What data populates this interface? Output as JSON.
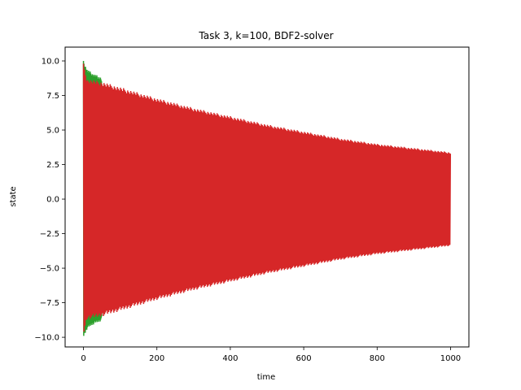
{
  "chart_data": {
    "type": "line",
    "title": "Task 3, k=100, BDF2-solver",
    "xlabel": "time",
    "ylabel": "state",
    "xlim": [
      -50,
      1050
    ],
    "ylim": [
      -10.7,
      11.0
    ],
    "xticks": [
      0,
      200,
      400,
      600,
      800,
      1000
    ],
    "xtick_labels": [
      "0",
      "200",
      "400",
      "600",
      "800",
      "1000"
    ],
    "yticks": [
      -10.0,
      -7.5,
      -5.0,
      -2.5,
      0.0,
      2.5,
      5.0,
      7.5,
      10.0
    ],
    "ytick_labels": [
      "−10.0",
      "−7.5",
      "−5.0",
      "−2.5",
      "0.0",
      "2.5",
      "5.0",
      "7.5",
      "10.0"
    ],
    "grid": false,
    "legend": "none",
    "series": [
      {
        "color": "#2ca02c",
        "style": "dense-oscillation",
        "x": [
          0,
          10,
          25,
          50
        ],
        "upper": [
          10.0,
          9.4,
          9.1,
          8.8
        ],
        "lower": [
          -10.0,
          -9.4,
          -9.1,
          -8.8
        ]
      },
      {
        "color": "#d62728",
        "style": "dense-oscillation",
        "x": [
          0,
          10,
          50,
          100,
          200,
          300,
          400,
          500,
          600,
          700,
          800,
          900,
          1000
        ],
        "upper": [
          9.8,
          8.7,
          8.5,
          8.1,
          7.3,
          6.6,
          6.0,
          5.4,
          4.9,
          4.4,
          4.0,
          3.7,
          3.4
        ],
        "lower": [
          -9.8,
          -8.7,
          -8.5,
          -8.1,
          -7.3,
          -6.6,
          -6.0,
          -5.4,
          -4.9,
          -4.4,
          -4.0,
          -3.7,
          -3.4
        ]
      }
    ]
  }
}
